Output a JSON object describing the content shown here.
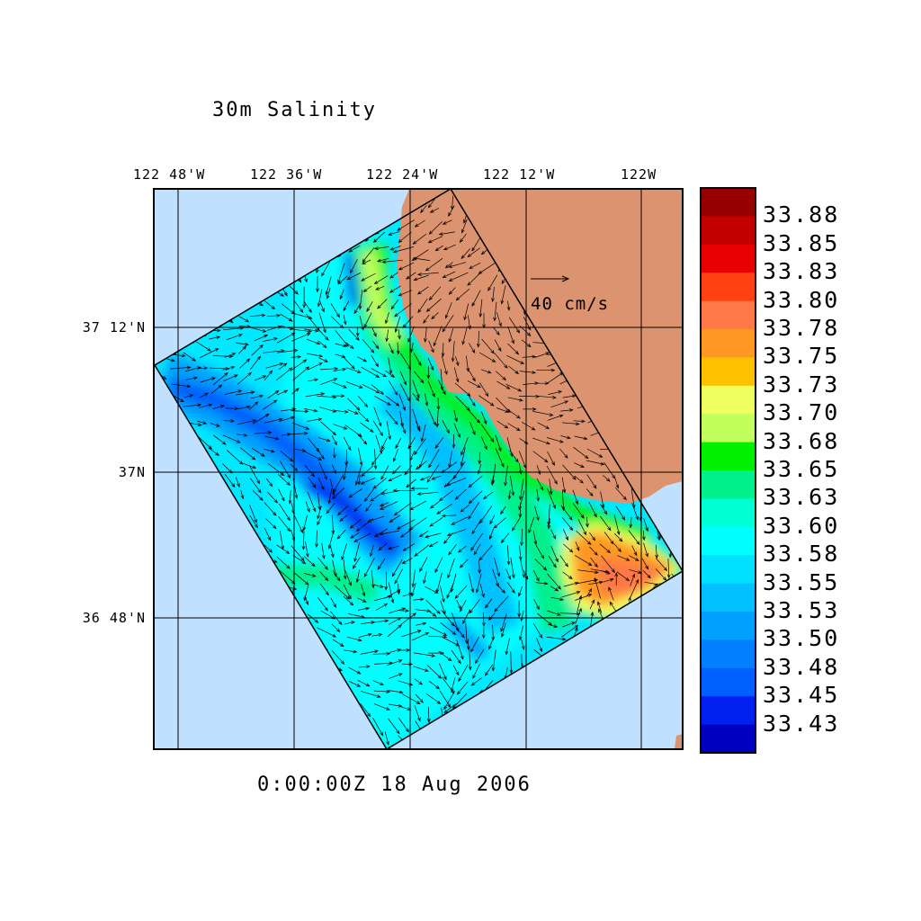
{
  "title": "30m Salinity",
  "time_label": "0:00:00Z  18 Aug 2006",
  "reference_vector": {
    "label": "40 cm/s",
    "speed_cm_s": 40
  },
  "chart_data": {
    "type": "heatmap",
    "title": "30m Salinity",
    "subtitle": "0:00:00Z  18 Aug 2006",
    "x_ticks": [
      "122 48'W",
      "122 36'W",
      "122 24'W",
      "122 12'W",
      "122W"
    ],
    "y_ticks": [
      "37 12'N",
      "37N",
      "36 48'N"
    ],
    "xlim": [
      -122.842,
      -121.929
    ],
    "ylim": [
      36.619,
      37.391
    ],
    "grid": true,
    "colorbar": {
      "placement": "right",
      "labels": [
        "33.88",
        "33.85",
        "33.83",
        "33.80",
        "33.78",
        "33.75",
        "33.73",
        "33.70",
        "33.68",
        "33.65",
        "33.63",
        "33.60",
        "33.58",
        "33.55",
        "33.53",
        "33.50",
        "33.48",
        "33.45",
        "33.43"
      ],
      "colors": [
        "#960000",
        "#c20000",
        "#e60000",
        "#ff4010",
        "#ff7846",
        "#ff9822",
        "#ffc000",
        "#f0ff60",
        "#c2ff5c",
        "#00f000",
        "#00f08c",
        "#00ffd2",
        "#00ffff",
        "#00e0ff",
        "#00c0ff",
        "#00a0ff",
        "#0080ff",
        "#0060ff",
        "#0020f0",
        "#0000c0"
      ]
    },
    "colors": {
      "ocean_outside": "#c0e0ff",
      "land": "#dc9370"
    }
  }
}
